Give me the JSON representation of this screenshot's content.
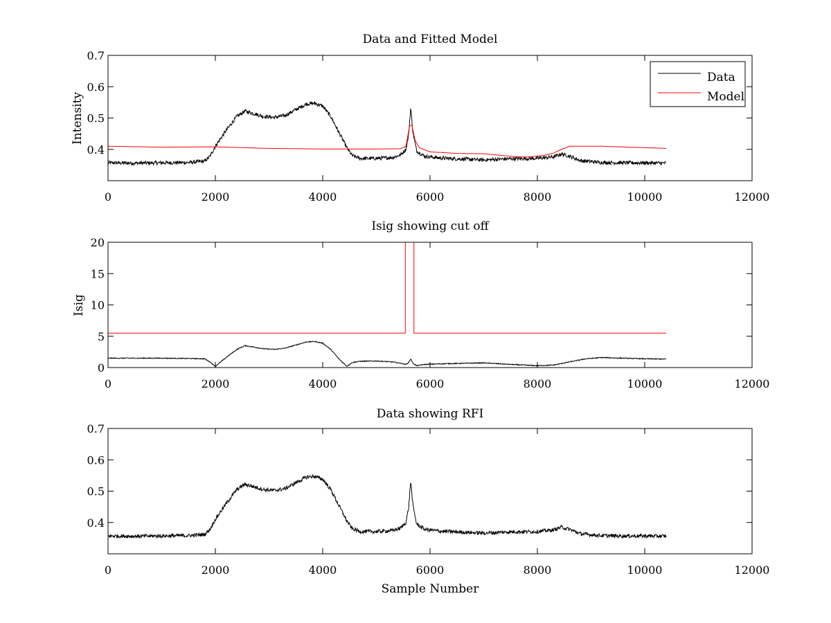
{
  "chart_data": [
    {
      "type": "line",
      "title": "Data and Fitted Model",
      "xlabel": "",
      "ylabel": "Intensity",
      "xlim": [
        0,
        12000
      ],
      "ylim": [
        0.3,
        0.7
      ],
      "xticks": [
        0,
        2000,
        4000,
        6000,
        8000,
        10000,
        12000
      ],
      "yticks": [
        0.4,
        0.5,
        0.6,
        0.7
      ],
      "ytick_labels": [
        "0.4",
        "0.5",
        "0.6",
        "0.7"
      ],
      "grid": false,
      "legend": {
        "position": "top-right",
        "entries": [
          "Data",
          "Model"
        ]
      },
      "series": [
        {
          "name": "Data",
          "color": "#000000",
          "noise": 0.006,
          "x": [
            0,
            500,
            1000,
            1500,
            1800,
            1900,
            2000,
            2200,
            2400,
            2550,
            2700,
            2900,
            3100,
            3300,
            3500,
            3700,
            3850,
            4000,
            4150,
            4300,
            4450,
            4550,
            4700,
            5000,
            5300,
            5450,
            5550,
            5600,
            5640,
            5680,
            5750,
            5900,
            6200,
            7000,
            7500,
            8000,
            8300,
            8450,
            8600,
            8800,
            9200,
            9600,
            10000,
            10400
          ],
          "y": [
            0.357,
            0.356,
            0.357,
            0.358,
            0.362,
            0.378,
            0.41,
            0.46,
            0.505,
            0.522,
            0.515,
            0.505,
            0.502,
            0.508,
            0.527,
            0.545,
            0.547,
            0.538,
            0.505,
            0.455,
            0.405,
            0.38,
            0.371,
            0.371,
            0.374,
            0.382,
            0.4,
            0.445,
            0.533,
            0.455,
            0.395,
            0.378,
            0.372,
            0.366,
            0.37,
            0.371,
            0.376,
            0.385,
            0.378,
            0.364,
            0.358,
            0.357,
            0.357,
            0.356
          ]
        },
        {
          "name": "Model",
          "color": "#ff0000",
          "noise": 0,
          "x": [
            0,
            1000,
            2000,
            3000,
            4000,
            5000,
            5450,
            5550,
            5620,
            5660,
            5720,
            5800,
            6000,
            6500,
            7000,
            7500,
            7800,
            8100,
            8300,
            8450,
            8600,
            8800,
            9200,
            9700,
            10400
          ],
          "y": [
            0.41,
            0.407,
            0.408,
            0.403,
            0.401,
            0.401,
            0.402,
            0.41,
            0.475,
            0.478,
            0.43,
            0.405,
            0.392,
            0.387,
            0.386,
            0.378,
            0.375,
            0.38,
            0.388,
            0.4,
            0.41,
            0.41,
            0.41,
            0.407,
            0.403
          ]
        }
      ]
    },
    {
      "type": "line",
      "title": "Isig showing cut off",
      "xlabel": "",
      "ylabel": "Isig",
      "xlim": [
        0,
        12000
      ],
      "ylim": [
        0,
        20
      ],
      "xticks": [
        0,
        2000,
        4000,
        6000,
        8000,
        10000,
        12000
      ],
      "yticks": [
        0,
        5,
        10,
        15,
        20
      ],
      "ytick_labels": [
        "0",
        "5",
        "10",
        "15",
        "20"
      ],
      "grid": false,
      "series": [
        {
          "color": "#000000",
          "noise": 0.07,
          "x": [
            0,
            500,
            1000,
            1500,
            1800,
            1900,
            2000,
            2200,
            2400,
            2550,
            2700,
            2900,
            3100,
            3300,
            3500,
            3700,
            3850,
            4000,
            4150,
            4300,
            4450,
            4550,
            4700,
            5000,
            5300,
            5450,
            5550,
            5600,
            5640,
            5680,
            5750,
            5900,
            6200,
            7000,
            7500,
            8000,
            8300,
            8600,
            8900,
            9200,
            9600,
            10000,
            10400
          ],
          "y": [
            1.5,
            1.5,
            1.5,
            1.45,
            1.4,
            0.9,
            0.2,
            1.6,
            2.9,
            3.5,
            3.3,
            3.0,
            2.9,
            3.1,
            3.6,
            4.1,
            4.15,
            3.9,
            2.9,
            1.4,
            0.2,
            0.8,
            1.0,
            1.05,
            0.9,
            0.7,
            0.5,
            0.8,
            1.4,
            0.7,
            0.3,
            0.5,
            0.6,
            0.75,
            0.5,
            0.3,
            0.4,
            0.9,
            1.4,
            1.6,
            1.5,
            1.4,
            1.35
          ]
        },
        {
          "color": "#ff0000",
          "noise": 0,
          "x": [
            0,
            5540,
            5540,
            5700,
            5700,
            10400
          ],
          "y": [
            5.5,
            5.5,
            20,
            20,
            5.5,
            5.5
          ]
        }
      ]
    },
    {
      "type": "line",
      "title": "Data showing RFI",
      "xlabel": "Sample Number",
      "ylabel": "",
      "xlim": [
        0,
        12000
      ],
      "ylim": [
        0.3,
        0.7
      ],
      "xticks": [
        0,
        2000,
        4000,
        6000,
        8000,
        10000,
        12000
      ],
      "yticks": [
        0.4,
        0.5,
        0.6,
        0.7
      ],
      "ytick_labels": [
        "0.4",
        "0.5",
        "0.6",
        "0.7"
      ],
      "grid": false,
      "series": [
        {
          "color": "#000000",
          "noise": 0.006,
          "x": [
            0,
            500,
            1000,
            1500,
            1800,
            1900,
            2000,
            2200,
            2400,
            2550,
            2700,
            2900,
            3100,
            3300,
            3500,
            3700,
            3850,
            4000,
            4150,
            4300,
            4450,
            4550,
            4700,
            5000,
            5300,
            5450,
            5550,
            5600,
            5640,
            5680,
            5750,
            5900,
            6200,
            7000,
            7500,
            8000,
            8300,
            8450,
            8600,
            8800,
            9200,
            9600,
            10000,
            10400
          ],
          "y": [
            0.357,
            0.356,
            0.357,
            0.358,
            0.362,
            0.378,
            0.41,
            0.46,
            0.505,
            0.522,
            0.515,
            0.505,
            0.502,
            0.508,
            0.527,
            0.545,
            0.547,
            0.538,
            0.505,
            0.455,
            0.405,
            0.38,
            0.371,
            0.371,
            0.374,
            0.382,
            0.4,
            0.445,
            0.533,
            0.455,
            0.395,
            0.378,
            0.372,
            0.366,
            0.37,
            0.371,
            0.376,
            0.385,
            0.378,
            0.364,
            0.358,
            0.357,
            0.357,
            0.356
          ]
        }
      ]
    }
  ]
}
